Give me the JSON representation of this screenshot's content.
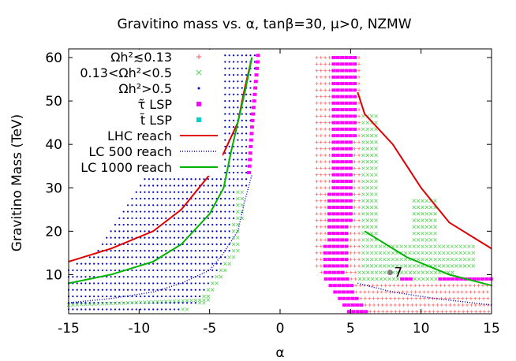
{
  "chart_data": {
    "type": "scatter",
    "title": "Gravitino mass vs. α, tanβ=30, μ>0, NZMW",
    "xlabel": "α",
    "ylabel": "Gravitino Mass (TeV)",
    "xlim": [
      -15,
      15
    ],
    "ylim": [
      1,
      62
    ],
    "xticks": [
      -15,
      -10,
      -5,
      0,
      5,
      10,
      15
    ],
    "yticks": [
      10,
      20,
      30,
      40,
      50,
      60
    ],
    "grid": false,
    "legend_position": "top-left",
    "colors": {
      "relic_low": "#ff5a5a",
      "relic_mid": "#5ad35a",
      "relic_high": "#0000c8",
      "stau": "#ff00ff",
      "stop": "#00d0d0",
      "lhc": "#e00000",
      "lc500": "#0000c8",
      "lc1000": "#00b400",
      "benchmark": "#808080"
    },
    "legend": [
      {
        "label": "Ωh²≲0.13",
        "kind": "plus",
        "color": "#ff5a5a"
      },
      {
        "label": "0.13<Ωh²<0.5",
        "kind": "cross",
        "color": "#5ad35a"
      },
      {
        "label": "Ωh²>0.5",
        "kind": "dot",
        "color": "#0000c8"
      },
      {
        "label": "τ̃ LSP",
        "kind": "square",
        "color": "#ff00ff"
      },
      {
        "label": "t̃ LSP",
        "kind": "square",
        "color": "#00d0d0"
      },
      {
        "label": "LHC reach",
        "kind": "line",
        "color": "#e00000"
      },
      {
        "label": "LC 500 reach",
        "kind": "dotted",
        "color": "#0000c8"
      },
      {
        "label": "LC 1000 reach",
        "kind": "line",
        "color": "#00b400"
      }
    ],
    "series": [
      {
        "name": "LHC reach",
        "color": "#e00000",
        "style": "solid",
        "segments": [
          [
            [
              -15,
              13
            ],
            [
              -12,
              16
            ],
            [
              -9,
              20
            ],
            [
              -7,
              25
            ],
            [
              -5,
              33
            ],
            [
              -4,
              38
            ],
            [
              -3,
              45
            ],
            [
              -2.5,
              53
            ],
            [
              -2,
              60
            ]
          ],
          [
            [
              5.5,
              52
            ],
            [
              6,
              47
            ],
            [
              8,
              40
            ],
            [
              10,
              30
            ],
            [
              12,
              22
            ],
            [
              14,
              18
            ],
            [
              15,
              16
            ]
          ]
        ]
      },
      {
        "name": "LC 500 reach",
        "color": "#0000c8",
        "style": "dotted",
        "segments": [
          [
            [
              -15,
              3.5
            ],
            [
              -12,
              4.5
            ],
            [
              -9,
              6
            ],
            [
              -7,
              8
            ],
            [
              -5,
              11
            ],
            [
              -4,
              15
            ],
            [
              -3,
              20
            ],
            [
              -2.5,
              27
            ],
            [
              -2,
              33
            ]
          ],
          [
            [
              5.5,
              8
            ],
            [
              8,
              6
            ],
            [
              11,
              4.5
            ],
            [
              15,
              3
            ]
          ]
        ]
      },
      {
        "name": "LC 1000 reach",
        "color": "#00b400",
        "style": "solid",
        "segments": [
          [
            [
              -15,
              8
            ],
            [
              -12,
              10
            ],
            [
              -9,
              13
            ],
            [
              -7,
              17
            ],
            [
              -5,
              24
            ],
            [
              -4,
              30
            ],
            [
              -3.5,
              38
            ],
            [
              -3,
              45
            ],
            [
              -2.5,
              52
            ],
            [
              -2,
              60
            ]
          ],
          [
            [
              6,
              20
            ],
            [
              9,
              14
            ],
            [
              12,
              10
            ],
            [
              15,
              7.5
            ]
          ]
        ]
      }
    ],
    "annotations": [
      {
        "text": "7",
        "x": 7.8,
        "y": 10.5
      }
    ]
  }
}
